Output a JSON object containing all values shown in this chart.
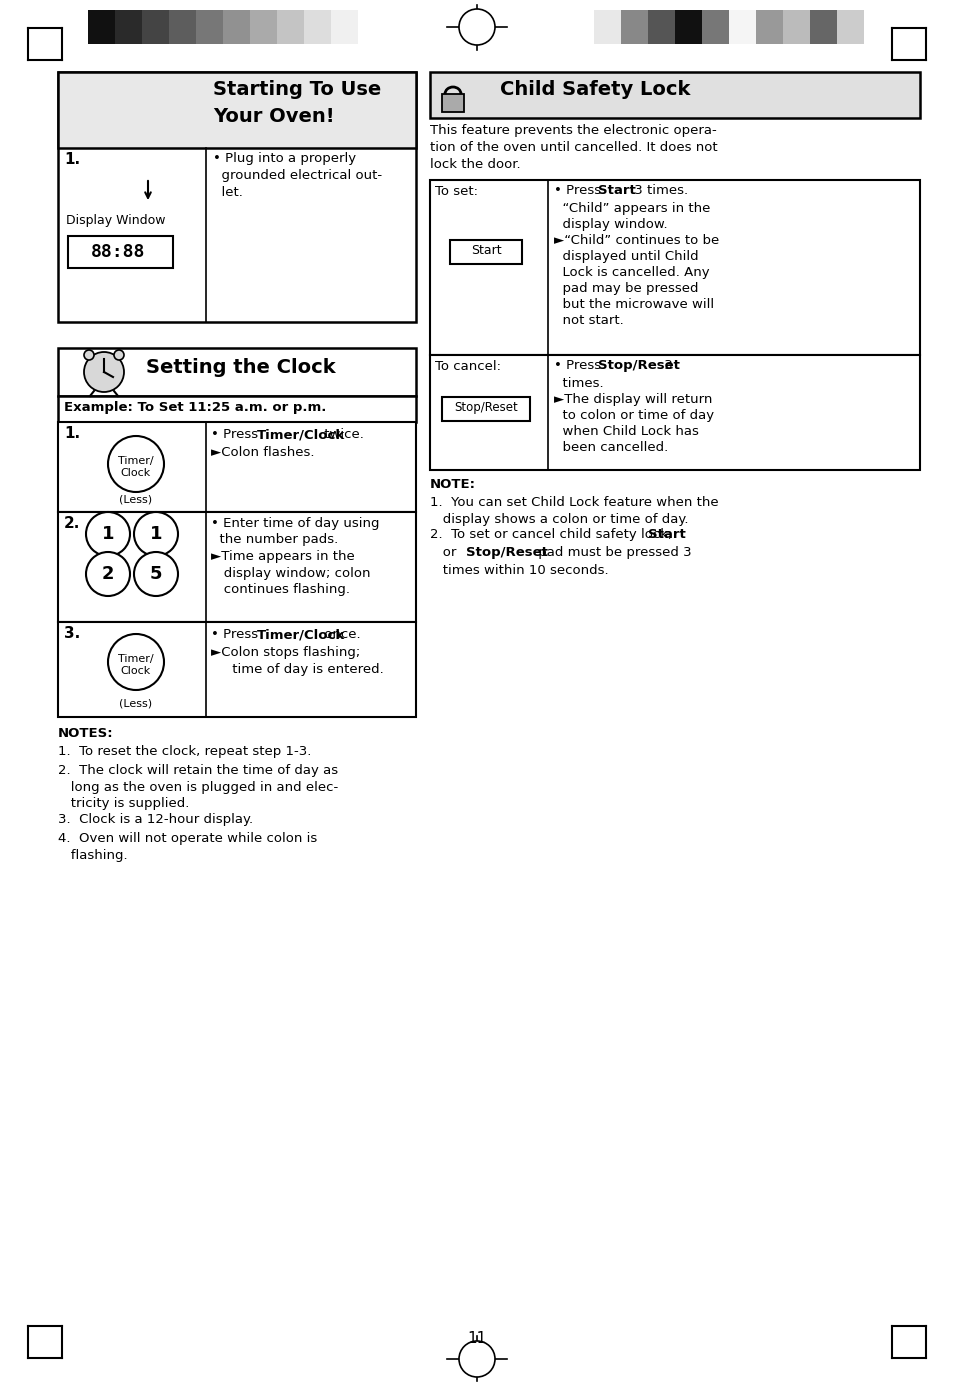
{
  "page_bg": "#ffffff",
  "page_number": "11",
  "s1_title1": "Starting To Use",
  "s1_title2": "Your Oven!",
  "s1_step1_text": "• Plug into a properly\n  grounded electrical out-\n  let.",
  "s1_display_label": "Display Window",
  "s1_display_text": "88:88",
  "s2_title": "Setting the Clock",
  "s2_example": "Example: To Set 11:25 a.m. or p.m.",
  "s2_r1_text1": "• Press ",
  "s2_r1_bold": "Timer/Clock",
  "s2_r1_text2": " twice.",
  "s2_r1_text3": "►Colon flashes.",
  "s2_r2_text": "• Enter time of day using\n  the number pads.\n►Time appears in the\n   display window; colon\n   continues flashing.",
  "s2_r3_text1": "• Press ",
  "s2_r3_bold": "Timer/Clock",
  "s2_r3_text2": " once.",
  "s2_r3_text3": "►Colon stops flashing;\n     time of day is entered.",
  "s2_notes_title": "NOTES:",
  "s2_notes": [
    "To reset the clock, repeat step 1-3.",
    "The clock will retain the time of day as\n   long as the oven is plugged in and elec-\n   tricity is supplied.",
    "Clock is a 12-hour display.",
    "Oven will not operate while colon is\n   flashing."
  ],
  "s3_title": "Child Safety Lock",
  "s3_intro": "This feature prevents the electronic opera-\ntion of the oven until cancelled. It does not\nlock the door.",
  "s3_toset_label": "To set:",
  "s3_toset_btn": "Start",
  "s3_toset_text_pre": "• Press ",
  "s3_toset_bold1": "Start",
  "s3_toset_text_post": " 3 times.\n  “Child” appears in the\n  display window.\n►“Child” continues to be\n  displayed until Child\n  Lock is cancelled. Any\n  pad may be pressed\n  but the microwave will\n  not start.",
  "s3_tocancel_label": "To cancel:",
  "s3_tocancel_btn": "Stop/Reset",
  "s3_tocancel_text_pre": "• Press ",
  "s3_tocancel_bold1": "Stop/Reset",
  "s3_tocancel_text_post": " 3\n  times.\n►The display will return\n  to colon or time of day\n  when Child Lock has\n  been cancelled.",
  "s3_note_title": "NOTE:",
  "s3_note1": "You can set Child Lock feature when the\n   display shows a colon or time of day.",
  "s3_note2_pre": "To set or cancel child safety lock, ",
  "s3_note2_bold1": "Start",
  "s3_note2_mid": "\n   or ",
  "s3_note2_bold2": "Stop/Reset",
  "s3_note2_post": " pad must be pressed 3\n   times within 10 seconds.",
  "left_bar_colors": [
    "#111111",
    "#2a2a2a",
    "#444444",
    "#5d5d5d",
    "#777777",
    "#919191",
    "#aaaaaa",
    "#c4c4c4",
    "#dddddd",
    "#f0f0f0"
  ],
  "right_bar_colors": [
    "#e8e8e8",
    "#888888",
    "#555555",
    "#111111",
    "#777777",
    "#f5f5f5",
    "#999999",
    "#bbbbbb",
    "#666666",
    "#cccccc"
  ]
}
